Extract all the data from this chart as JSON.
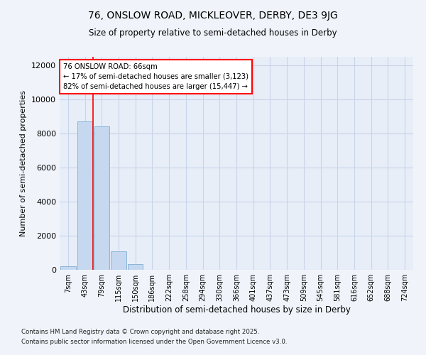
{
  "title_line1": "76, ONSLOW ROAD, MICKLEOVER, DERBY, DE3 9JG",
  "title_line2": "Size of property relative to semi-detached houses in Derby",
  "xlabel": "Distribution of semi-detached houses by size in Derby",
  "ylabel": "Number of semi-detached properties",
  "categories": [
    "7sqm",
    "43sqm",
    "79sqm",
    "115sqm",
    "150sqm",
    "186sqm",
    "222sqm",
    "258sqm",
    "294sqm",
    "330sqm",
    "366sqm",
    "401sqm",
    "437sqm",
    "473sqm",
    "509sqm",
    "545sqm",
    "581sqm",
    "616sqm",
    "652sqm",
    "688sqm",
    "724sqm"
  ],
  "values": [
    200,
    8700,
    8400,
    1100,
    350,
    15,
    0,
    0,
    0,
    0,
    0,
    0,
    0,
    0,
    0,
    0,
    0,
    0,
    0,
    0,
    0
  ],
  "bar_color": "#c5d8f0",
  "bar_edge_color": "#8ab4d8",
  "red_line_index": 2,
  "annotation_line1": "76 ONSLOW ROAD: 66sqm",
  "annotation_line2": "← 17% of semi-detached houses are smaller (3,123)",
  "annotation_line3": "82% of semi-detached houses are larger (15,447) →",
  "footer_line1": "Contains HM Land Registry data © Crown copyright and database right 2025.",
  "footer_line2": "Contains public sector information licensed under the Open Government Licence v3.0.",
  "ylim": [
    0,
    12500
  ],
  "yticks": [
    0,
    2000,
    4000,
    6000,
    8000,
    10000,
    12000
  ],
  "background_color": "#f0f4fa",
  "plot_bg_color": "#e8eef8",
  "grid_color": "#c8d4e8"
}
